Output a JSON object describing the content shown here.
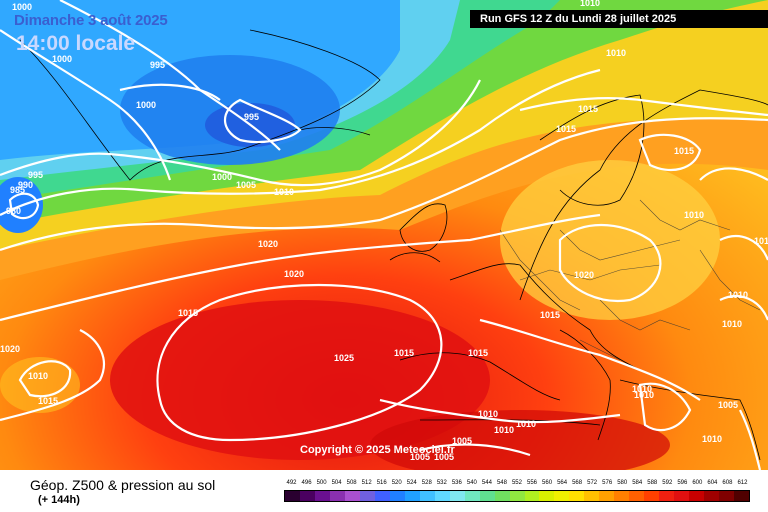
{
  "header": {
    "date": "Dimanche 3 août 2025",
    "time": "14:00 locale",
    "run": "Run GFS 12 Z du Lundi 28 juillet 2025"
  },
  "copyright": "Copyright © 2025 Meteociel.fr",
  "legend": {
    "title": "Géop. Z500 & pression au sol",
    "subtitle": "(+ 144h)",
    "scale": [
      "492",
      "496",
      "500",
      "504",
      "508",
      "512",
      "516",
      "520",
      "524",
      "528",
      "532",
      "536",
      "540",
      "544",
      "548",
      "552",
      "556",
      "560",
      "564",
      "568",
      "572",
      "576",
      "580",
      "584",
      "588",
      "592",
      "596",
      "600",
      "604",
      "608",
      "612"
    ],
    "colors": [
      "#2a0030",
      "#4a0060",
      "#6a1090",
      "#8a30b0",
      "#aa50d0",
      "#7060e0",
      "#4060ff",
      "#2080ff",
      "#20a0ff",
      "#40c0ff",
      "#60d8ff",
      "#80e8f0",
      "#70e8c0",
      "#60e090",
      "#70e060",
      "#90e840",
      "#b0f020",
      "#d8f000",
      "#f0f000",
      "#ffe000",
      "#ffc000",
      "#ffa000",
      "#ff8000",
      "#ff6000",
      "#ff4000",
      "#f02010",
      "#e01010",
      "#c80000",
      "#a00000",
      "#800000",
      "#500000"
    ]
  },
  "isobar_labels": [
    {
      "text": "1000"
    },
    {
      "text": "1000"
    },
    {
      "text": "995"
    },
    {
      "text": "1000"
    },
    {
      "text": "995"
    },
    {
      "text": "995"
    },
    {
      "text": "990"
    },
    {
      "text": "985"
    },
    {
      "text": "980"
    },
    {
      "text": "1000"
    },
    {
      "text": "1005"
    },
    {
      "text": "1010"
    },
    {
      "text": "1010"
    },
    {
      "text": "1010"
    },
    {
      "text": "1015"
    },
    {
      "text": "1015"
    },
    {
      "text": "1015"
    },
    {
      "text": "1010"
    },
    {
      "text": "1020"
    },
    {
      "text": "1020"
    },
    {
      "text": "1020"
    },
    {
      "text": "1015"
    },
    {
      "text": "1015"
    },
    {
      "text": "1025"
    },
    {
      "text": "1015"
    },
    {
      "text": "1015"
    },
    {
      "text": "1010"
    },
    {
      "text": "1010"
    },
    {
      "text": "1010"
    },
    {
      "text": "1020"
    },
    {
      "text": "1010"
    },
    {
      "text": "1015"
    },
    {
      "text": "1010"
    },
    {
      "text": "1010"
    },
    {
      "text": "1005"
    },
    {
      "text": "1010"
    },
    {
      "text": "1010"
    },
    {
      "text": "1010"
    },
    {
      "text": "1005"
    },
    {
      "text": "1005"
    },
    {
      "text": "1005"
    },
    {
      "text": "1010"
    }
  ]
}
